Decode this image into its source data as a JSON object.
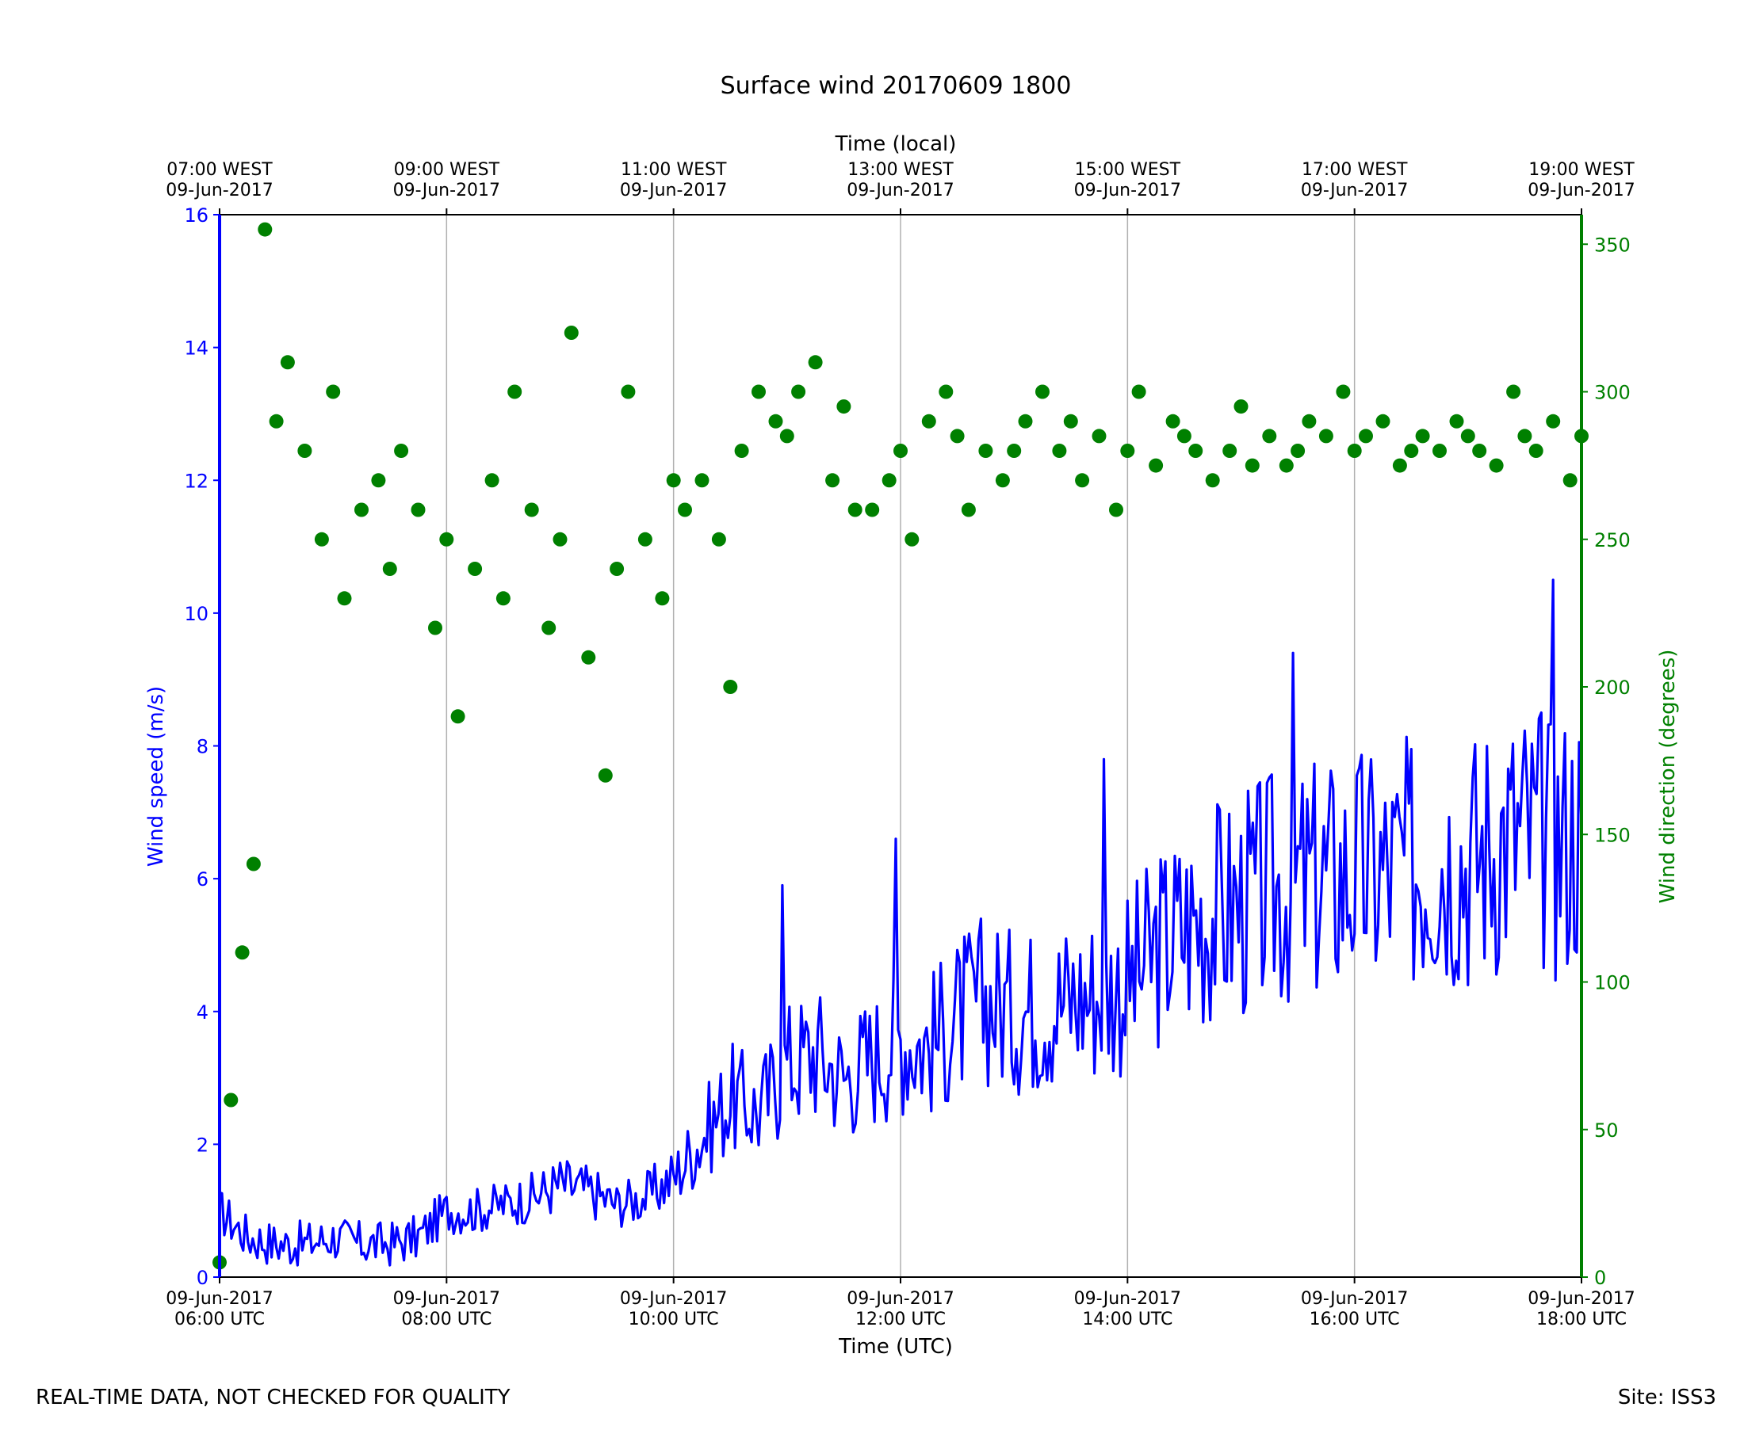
{
  "chart_data": {
    "type": "line+scatter",
    "title": "Surface wind 20170609 1800",
    "xlabel_bottom": "Time (UTC)",
    "xlabel_top": "Time (local)",
    "ylabel_left": "Wind speed (m/s)",
    "ylabel_right": "Wind direction (degrees)",
    "xlim_hours_utc": [
      6,
      18
    ],
    "ylim_left": [
      0,
      16
    ],
    "ylim_right": [
      0,
      360
    ],
    "grid": "vertical",
    "bottom_ticks": [
      {
        "date": "09-Jun-2017",
        "time": "06:00 UTC"
      },
      {
        "date": "09-Jun-2017",
        "time": "08:00 UTC"
      },
      {
        "date": "09-Jun-2017",
        "time": "10:00 UTC"
      },
      {
        "date": "09-Jun-2017",
        "time": "12:00 UTC"
      },
      {
        "date": "09-Jun-2017",
        "time": "14:00 UTC"
      },
      {
        "date": "09-Jun-2017",
        "time": "16:00 UTC"
      },
      {
        "date": "09-Jun-2017",
        "time": "18:00 UTC"
      }
    ],
    "top_ticks": [
      {
        "time": "07:00 WEST",
        "date": "09-Jun-2017"
      },
      {
        "time": "09:00 WEST",
        "date": "09-Jun-2017"
      },
      {
        "time": "11:00 WEST",
        "date": "09-Jun-2017"
      },
      {
        "time": "13:00 WEST",
        "date": "09-Jun-2017"
      },
      {
        "time": "15:00 WEST",
        "date": "09-Jun-2017"
      },
      {
        "time": "17:00 WEST",
        "date": "09-Jun-2017"
      },
      {
        "time": "19:00 WEST",
        "date": "09-Jun-2017"
      }
    ],
    "left_ticks": [
      "0",
      "2",
      "4",
      "6",
      "8",
      "10",
      "12",
      "14",
      "16"
    ],
    "right_ticks": [
      "0",
      "50",
      "100",
      "150",
      "200",
      "250",
      "300",
      "350"
    ],
    "series": [
      {
        "kind": "line",
        "axis": "left",
        "color": "#0000ff",
        "x_hours_utc": [
          6.0,
          6.25,
          6.5,
          6.75,
          7.0,
          7.25,
          7.5,
          7.75,
          8.0,
          8.25,
          8.5,
          8.75,
          9.0,
          9.25,
          9.5,
          9.75,
          10.0,
          10.25,
          10.5,
          10.75,
          11.0,
          11.25,
          11.5,
          11.75,
          12.0,
          12.25,
          12.5,
          12.75,
          13.0,
          13.25,
          13.5,
          13.75,
          14.0,
          14.25,
          14.5,
          14.75,
          15.0,
          15.25,
          15.5,
          15.75,
          16.0,
          16.25,
          16.5,
          16.75,
          17.0,
          17.25,
          17.5,
          17.75,
          18.0
        ],
        "values": [
          1.0,
          0.6,
          0.5,
          0.5,
          0.6,
          0.5,
          0.5,
          0.6,
          1.0,
          1.0,
          1.1,
          1.2,
          1.4,
          1.3,
          1.1,
          1.2,
          1.5,
          2.1,
          2.7,
          2.5,
          3.2,
          3.4,
          3.0,
          3.3,
          3.6,
          3.5,
          3.9,
          4.2,
          4.0,
          4.1,
          4.2,
          4.3,
          4.4,
          4.9,
          5.3,
          5.5,
          5.6,
          5.8,
          5.9,
          6.0,
          6.1,
          6.1,
          6.2,
          6.4,
          6.3,
          6.6,
          6.7,
          6.5,
          6.8
        ],
        "max_gust_like_peaks": [
          {
            "x": 10.95,
            "y": 5.9
          },
          {
            "x": 11.95,
            "y": 6.6
          },
          {
            "x": 13.8,
            "y": 7.8
          },
          {
            "x": 15.45,
            "y": 9.4
          },
          {
            "x": 17.75,
            "y": 10.5
          }
        ]
      },
      {
        "kind": "scatter",
        "axis": "right",
        "color": "#008000",
        "x_hours_utc": [
          6.0,
          6.1,
          6.2,
          6.3,
          6.4,
          6.5,
          6.6,
          6.75,
          6.9,
          7.0,
          7.1,
          7.25,
          7.4,
          7.5,
          7.6,
          7.75,
          7.9,
          8.0,
          8.1,
          8.25,
          8.4,
          8.5,
          8.6,
          8.75,
          8.9,
          9.0,
          9.1,
          9.25,
          9.4,
          9.5,
          9.6,
          9.75,
          9.9,
          10.0,
          10.1,
          10.25,
          10.4,
          10.5,
          10.6,
          10.75,
          10.9,
          11.0,
          11.1,
          11.25,
          11.4,
          11.5,
          11.6,
          11.75,
          11.9,
          12.0,
          12.1,
          12.25,
          12.4,
          12.5,
          12.6,
          12.75,
          12.9,
          13.0,
          13.1,
          13.25,
          13.4,
          13.5,
          13.6,
          13.75,
          13.9,
          14.0,
          14.1,
          14.25,
          14.4,
          14.5,
          14.6,
          14.75,
          14.9,
          15.0,
          15.1,
          15.25,
          15.4,
          15.5,
          15.6,
          15.75,
          15.9,
          16.0,
          16.1,
          16.25,
          16.4,
          16.5,
          16.6,
          16.75,
          16.9,
          17.0,
          17.1,
          17.25,
          17.4,
          17.5,
          17.6,
          17.75,
          17.9,
          18.0
        ],
        "values": [
          5,
          60,
          110,
          140,
          355,
          290,
          310,
          280,
          250,
          300,
          230,
          260,
          270,
          240,
          280,
          260,
          220,
          250,
          190,
          240,
          270,
          230,
          300,
          260,
          220,
          250,
          320,
          210,
          170,
          240,
          300,
          250,
          230,
          270,
          260,
          270,
          250,
          200,
          280,
          300,
          290,
          285,
          300,
          310,
          270,
          295,
          260,
          260,
          270,
          280,
          250,
          290,
          300,
          285,
          260,
          280,
          270,
          280,
          290,
          300,
          280,
          290,
          270,
          285,
          260,
          280,
          300,
          275,
          290,
          285,
          280,
          270,
          280,
          295,
          275,
          285,
          275,
          280,
          290,
          285,
          300,
          280,
          285,
          290,
          275,
          280,
          285,
          280,
          290,
          285,
          280,
          275,
          300,
          285,
          280,
          290,
          270,
          285
        ]
      }
    ]
  },
  "footer": {
    "left": "REAL-TIME DATA, NOT CHECKED FOR QUALITY",
    "right": "Site: ISS3"
  }
}
